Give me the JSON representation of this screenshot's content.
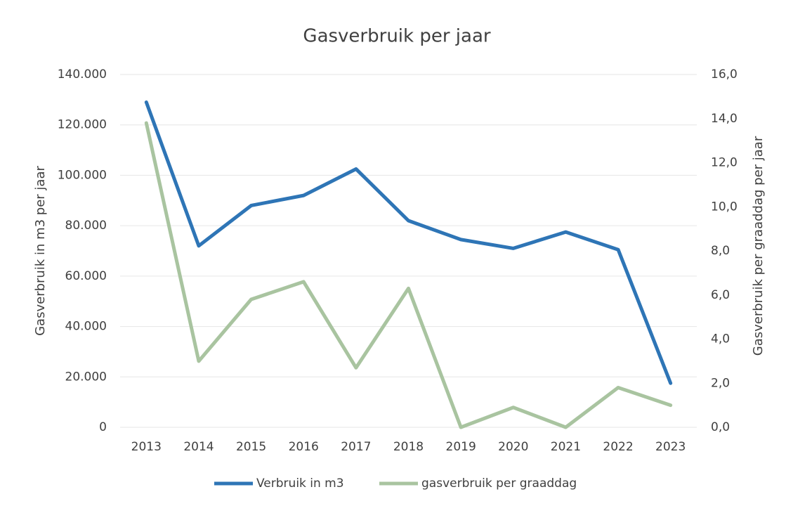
{
  "chart_data": {
    "type": "line",
    "title": "Gasverbruik per jaar",
    "y_label": "Gasverbruik in m3 per jaar",
    "y2_label": "Gasverbruik per graaddag per jaar",
    "categories": [
      "2013",
      "2014",
      "2015",
      "2016",
      "2017",
      "2018",
      "2019",
      "2020",
      "2021",
      "2022",
      "2023"
    ],
    "series": [
      {
        "name": "Verbruik in m3",
        "color": "#2e75b6",
        "values": [
          129000,
          72000,
          88000,
          92000,
          102500,
          82000,
          74500,
          71000,
          77500,
          70500,
          17500
        ]
      },
      {
        "name": "gasverbruik per graaddag",
        "color": "#a9c4a0",
        "axis": "y2",
        "values": [
          13.8,
          3.0,
          5.8,
          6.6,
          2.7,
          6.3,
          0,
          0.9,
          0,
          1.8,
          1.0
        ]
      }
    ],
    "ylim": [
      0,
      140000
    ],
    "yticks": [
      0,
      {
        "value": 20000,
        "label": "20.000"
      },
      {
        "value": 40000,
        "label": "40.000"
      },
      {
        "value": 60000,
        "label": "60.000"
      },
      {
        "value": 80000,
        "label": "80.000"
      },
      {
        "value": 100000,
        "label": "100.000"
      },
      {
        "value": 120000,
        "label": "120.000"
      },
      {
        "value": 140000,
        "label": "140.000"
      }
    ],
    "y2lim": [
      0,
      16
    ],
    "y2ticks": [
      {
        "value": 0,
        "label": "0,0"
      },
      {
        "value": 2,
        "label": "2,0"
      },
      {
        "value": 4,
        "label": "4,0"
      },
      {
        "value": 6,
        "label": "6,0"
      },
      {
        "value": 8,
        "label": "8,0"
      },
      {
        "value": 10,
        "label": "10,0"
      },
      {
        "value": 12,
        "label": "12,0"
      },
      {
        "value": 14,
        "label": "14,0"
      },
      {
        "value": 16,
        "label": "16,0"
      }
    ],
    "grid": true,
    "legend": "bottom"
  }
}
